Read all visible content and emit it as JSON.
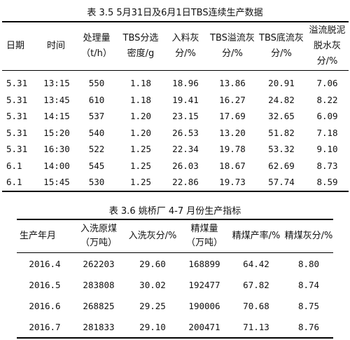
{
  "table1": {
    "caption": "表 3.5  5月31日及6月1日TBS连续生产数据",
    "headers": [
      "日期",
      "时间",
      "处理量（t/h）",
      "TBS分选密度/g",
      "入料灰分/%",
      "TBS溢流灰分/%",
      "TBS底流灰分/%",
      "溢流脱泥脱水灰分/%"
    ],
    "rows": [
      [
        "5.31",
        "13:15",
        "550",
        "1.18",
        "18.96",
        "13.86",
        "20.91",
        "7.06"
      ],
      [
        "5.31",
        "13:45",
        "610",
        "1.18",
        "19.41",
        "16.27",
        "24.82",
        "8.22"
      ],
      [
        "5.31",
        "14:15",
        "537",
        "1.20",
        "23.15",
        "17.69",
        "32.65",
        "6.09"
      ],
      [
        "5.31",
        "15:20",
        "540",
        "1.20",
        "26.53",
        "13.20",
        "51.82",
        "7.18"
      ],
      [
        "5.31",
        "16:30",
        "522",
        "1.25",
        "22.34",
        "19.78",
        "53.32",
        "9.10"
      ],
      [
        "6.1",
        "14:00",
        "545",
        "1.25",
        "26.03",
        "18.67",
        "62.69",
        "8.73"
      ],
      [
        "6.1",
        "15:45",
        "530",
        "1.25",
        "22.86",
        "19.73",
        "57.74",
        "8.59"
      ]
    ]
  },
  "table2": {
    "caption": "表 3.6  姚桥厂 4-7 月份生产指标",
    "headers": [
      "生产年月",
      "入洗原煤（万吨）",
      "入洗灰分/%",
      "精煤量（万吨）",
      "精煤产率/%",
      "精煤灰分/%"
    ],
    "rows": [
      [
        "2016.4",
        "262203",
        "29.60",
        "168899",
        "64.42",
        "8.80"
      ],
      [
        "2016.5",
        "283808",
        "30.02",
        "192477",
        "67.82",
        "8.74"
      ],
      [
        "2016.6",
        "268825",
        "29.25",
        "190006",
        "70.68",
        "8.75"
      ],
      [
        "2016.7",
        "281833",
        "29.10",
        "200471",
        "71.13",
        "8.76"
      ]
    ]
  }
}
